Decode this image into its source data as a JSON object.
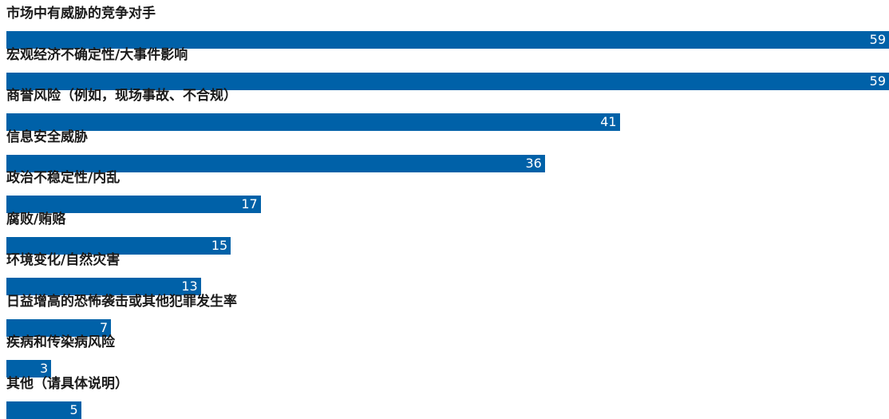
{
  "chart_data": {
    "type": "bar",
    "orientation": "horizontal",
    "categories": [
      "市场中有威胁的竞争对手",
      "宏观经济不确定性/大事件影响",
      "商誉风险（例如，现场事故、不合规）",
      "信息安全威胁",
      "政治不稳定性/内乱",
      "腐败/贿赂",
      "环境变化/自然灾害",
      "日益增高的恐怖袭击或其他犯罪发生率",
      "疾病和传染病风险",
      "其他（请具体说明）"
    ],
    "values": [
      59,
      59,
      41,
      36,
      17,
      15,
      13,
      7,
      3,
      5
    ],
    "xlim": [
      0,
      59
    ],
    "grid": false,
    "legend": "none",
    "bar_color": "#0061a8",
    "label_color": "#1a1a1a",
    "value_label_color": "#ffffff"
  }
}
